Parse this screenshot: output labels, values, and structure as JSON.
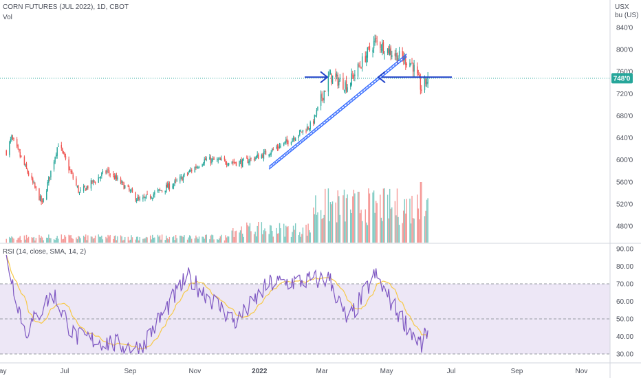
{
  "header": {
    "symbol_title": "CORN FUTURES (JUL 2022), 1D, CBOT",
    "volume_label": "Vol",
    "currency": "USX",
    "unit": "bu (US)",
    "rsi_label": "RSI (14, close, SMA, 14, 2)"
  },
  "colors": {
    "up": "#26a69a",
    "down": "#ef5350",
    "rsi_line": "#7e57c2",
    "rsi_ma": "#f7c948",
    "rsi_band": "#ede7f6",
    "trendline": "#2962ff",
    "arrow": "#1e40c8",
    "price_badge": "#26a69a"
  },
  "chart_data": [
    {
      "type": "candlestick",
      "title": "CORN FUTURES (JUL 2022), 1D, CBOT",
      "ylabel": "USX bu (US)",
      "y_ticks": [
        "840'0",
        "800'0",
        "760'0",
        "720'0",
        "680'0",
        "640'0",
        "600'0",
        "560'0",
        "520'0",
        "480'0"
      ],
      "ylim": [
        458,
        855
      ],
      "x_ticks": [
        "May",
        "Jul",
        "Sep",
        "Nov",
        "2022",
        "Mar",
        "May",
        "Jul",
        "Sep",
        "Nov"
      ],
      "last_price": 748,
      "last_price_label": "748'0",
      "key_points": [
        {
          "date": "2021-05-07",
          "price": 615
        },
        {
          "date": "2021-05-12",
          "price": 640
        },
        {
          "date": "2021-06-10",
          "price": 520
        },
        {
          "date": "2021-06-25",
          "price": 630
        },
        {
          "date": "2021-07-15",
          "price": 540
        },
        {
          "date": "2021-08-10",
          "price": 580
        },
        {
          "date": "2021-08-25",
          "price": 555
        },
        {
          "date": "2021-09-10",
          "price": 525
        },
        {
          "date": "2021-10-15",
          "price": 560
        },
        {
          "date": "2021-11-10",
          "price": 600
        },
        {
          "date": "2021-12-15",
          "price": 595
        },
        {
          "date": "2022-01-05",
          "price": 610
        },
        {
          "date": "2022-01-25",
          "price": 630
        },
        {
          "date": "2022-02-20",
          "price": 665
        },
        {
          "date": "2022-03-08",
          "price": 752
        },
        {
          "date": "2022-03-25",
          "price": 735
        },
        {
          "date": "2022-04-20",
          "price": 815
        },
        {
          "date": "2022-05-10",
          "price": 790
        },
        {
          "date": "2022-05-25",
          "price": 775
        },
        {
          "date": "2022-06-03",
          "price": 728
        },
        {
          "date": "2022-06-09",
          "price": 748
        }
      ],
      "volume_series": "Vol",
      "annotations": [
        "Trendline channel (Jan–May 2022)",
        "Right arrow at ~750",
        "Left arrow at ~750",
        "Horizontal line at 750"
      ]
    },
    {
      "type": "line",
      "title": "RSI (14, close, SMA, 14, 2)",
      "y_ticks": [
        "90.00",
        "80.00",
        "70.00",
        "60.00",
        "50.00",
        "40.00",
        "30.00"
      ],
      "ylim": [
        27,
        92
      ],
      "bands": {
        "upper": 70,
        "middle": 50,
        "lower": 30
      },
      "key_points": [
        {
          "date": "2021-05-07",
          "rsi": 85
        },
        {
          "date": "2021-05-25",
          "rsi": 42
        },
        {
          "date": "2021-06-20",
          "rsi": 65
        },
        {
          "date": "2021-07-10",
          "rsi": 40
        },
        {
          "date": "2021-09-10",
          "rsi": 33
        },
        {
          "date": "2021-10-25",
          "rsi": 74
        },
        {
          "date": "2021-12-10",
          "rsi": 48
        },
        {
          "date": "2022-01-10",
          "rsi": 70
        },
        {
          "date": "2022-03-08",
          "rsi": 73
        },
        {
          "date": "2022-03-25",
          "rsi": 48
        },
        {
          "date": "2022-04-20",
          "rsi": 75
        },
        {
          "date": "2022-05-10",
          "rsi": 55
        },
        {
          "date": "2022-06-03",
          "rsi": 35
        },
        {
          "date": "2022-06-09",
          "rsi": 43
        }
      ]
    }
  ]
}
